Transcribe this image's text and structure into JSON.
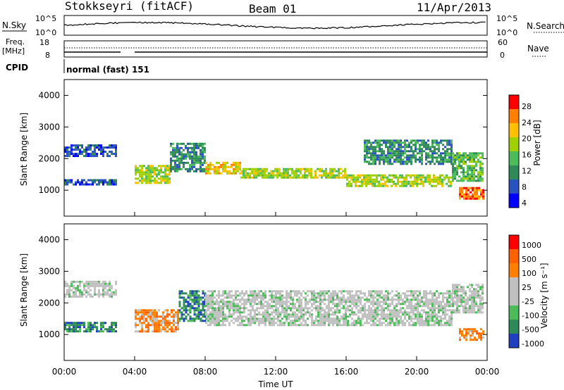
{
  "header": {
    "station": "Stokkseyri (fitACF)",
    "beam": "Beam 01",
    "date": "11/Apr/2013"
  },
  "sky_panel": {
    "left_label": "N.Sky",
    "right_label": "N.Search",
    "left_top_tick": "10^5",
    "left_bottom_tick": "10^0",
    "right_top_tick": "10^5",
    "right_bottom_tick": "10^0"
  },
  "freq_panel": {
    "left_label_line1": "Freq.",
    "left_label_line2": "[MHz]",
    "right_label": "Nave",
    "left_top_tick": "18",
    "left_bottom_tick": "8",
    "right_top_tick": "60",
    "right_bottom_tick": "0"
  },
  "cpid_panel": {
    "label": "CPID",
    "text": "normal (fast) 151"
  },
  "chart_data": [
    {
      "type": "heatmap",
      "quantity": "Power",
      "ylabel": "Slant Range [km]",
      "colorbar_label": "Power [dB]",
      "colorbar_ticks": [
        "28",
        "24",
        "20",
        "16",
        "12",
        "8",
        "4"
      ],
      "yticks": [
        "4000",
        "3000",
        "2000",
        "1000"
      ],
      "ylim": [
        180,
        4500
      ],
      "xlim_hours": [
        0,
        24
      ],
      "colors": [
        "#0000ff",
        "#2a52be",
        "#2e8b57",
        "#4dbb5a",
        "#a0d000",
        "#ffc000",
        "#ff8000",
        "#ff0000"
      ],
      "bands": [
        {
          "x": [
            0.0,
            3.0
          ],
          "y": [
            2100,
            2450
          ],
          "level": 1.0
        },
        {
          "x": [
            0.0,
            3.0
          ],
          "y": [
            1150,
            1350
          ],
          "level": 1.0
        },
        {
          "x": [
            4.0,
            6.0
          ],
          "y": [
            1200,
            1800
          ],
          "level": 4.0
        },
        {
          "x": [
            6.0,
            8.0
          ],
          "y": [
            1600,
            2500
          ],
          "level": 2.0
        },
        {
          "x": [
            8.0,
            10.0
          ],
          "y": [
            1500,
            1900
          ],
          "level": 5.0
        },
        {
          "x": [
            10.0,
            16.0
          ],
          "y": [
            1400,
            1700
          ],
          "level": 4.0
        },
        {
          "x": [
            16.0,
            22.0
          ],
          "y": [
            1100,
            1500
          ],
          "level": 4.0
        },
        {
          "x": [
            17.0,
            22.0
          ],
          "y": [
            1800,
            2600
          ],
          "level": 2.0
        },
        {
          "x": [
            22.0,
            23.8
          ],
          "y": [
            1300,
            2200
          ],
          "level": 3.0
        },
        {
          "x": [
            22.4,
            23.8
          ],
          "y": [
            700,
            1100
          ],
          "level": 6.0
        }
      ]
    },
    {
      "type": "heatmap",
      "quantity": "Velocity",
      "ylabel": "Slant Range [km]",
      "colorbar_label": "Velocity [m s⁻¹]",
      "colorbar_ticks": [
        "1000",
        "500",
        "100",
        "25",
        "-25",
        "-100",
        "-500",
        "-1000"
      ],
      "yticks": [
        "4000",
        "3000",
        "2000",
        "1000"
      ],
      "xticks": [
        "00:00",
        "04:00",
        "08:00",
        "12:00",
        "16:00",
        "20:00",
        "00:00"
      ],
      "xlabel": "Time UT",
      "ylim": [
        180,
        4500
      ],
      "xlim_hours": [
        0,
        24
      ],
      "colors": [
        "#2040c0",
        "#2e8b57",
        "#4dbb5a",
        "#c0c0c0",
        "#c0c0c0",
        "#ff8000",
        "#ff6000",
        "#ff0000"
      ],
      "bands": [
        {
          "x": [
            0.0,
            3.0
          ],
          "y": [
            2200,
            2700
          ],
          "level": 3.0
        },
        {
          "x": [
            0.0,
            3.0
          ],
          "y": [
            1100,
            1400
          ],
          "level": 1.0
        },
        {
          "x": [
            4.0,
            6.5
          ],
          "y": [
            1100,
            1800
          ],
          "level": 5.0
        },
        {
          "x": [
            6.5,
            8.0
          ],
          "y": [
            1400,
            2400
          ],
          "level": 1.0
        },
        {
          "x": [
            8.0,
            22.0
          ],
          "y": [
            1300,
            2400
          ],
          "level": 3.0
        },
        {
          "x": [
            22.0,
            23.8
          ],
          "y": [
            1700,
            2600
          ],
          "level": 3.0
        },
        {
          "x": [
            22.4,
            23.8
          ],
          "y": [
            800,
            1200
          ],
          "level": 5.0
        }
      ]
    }
  ]
}
